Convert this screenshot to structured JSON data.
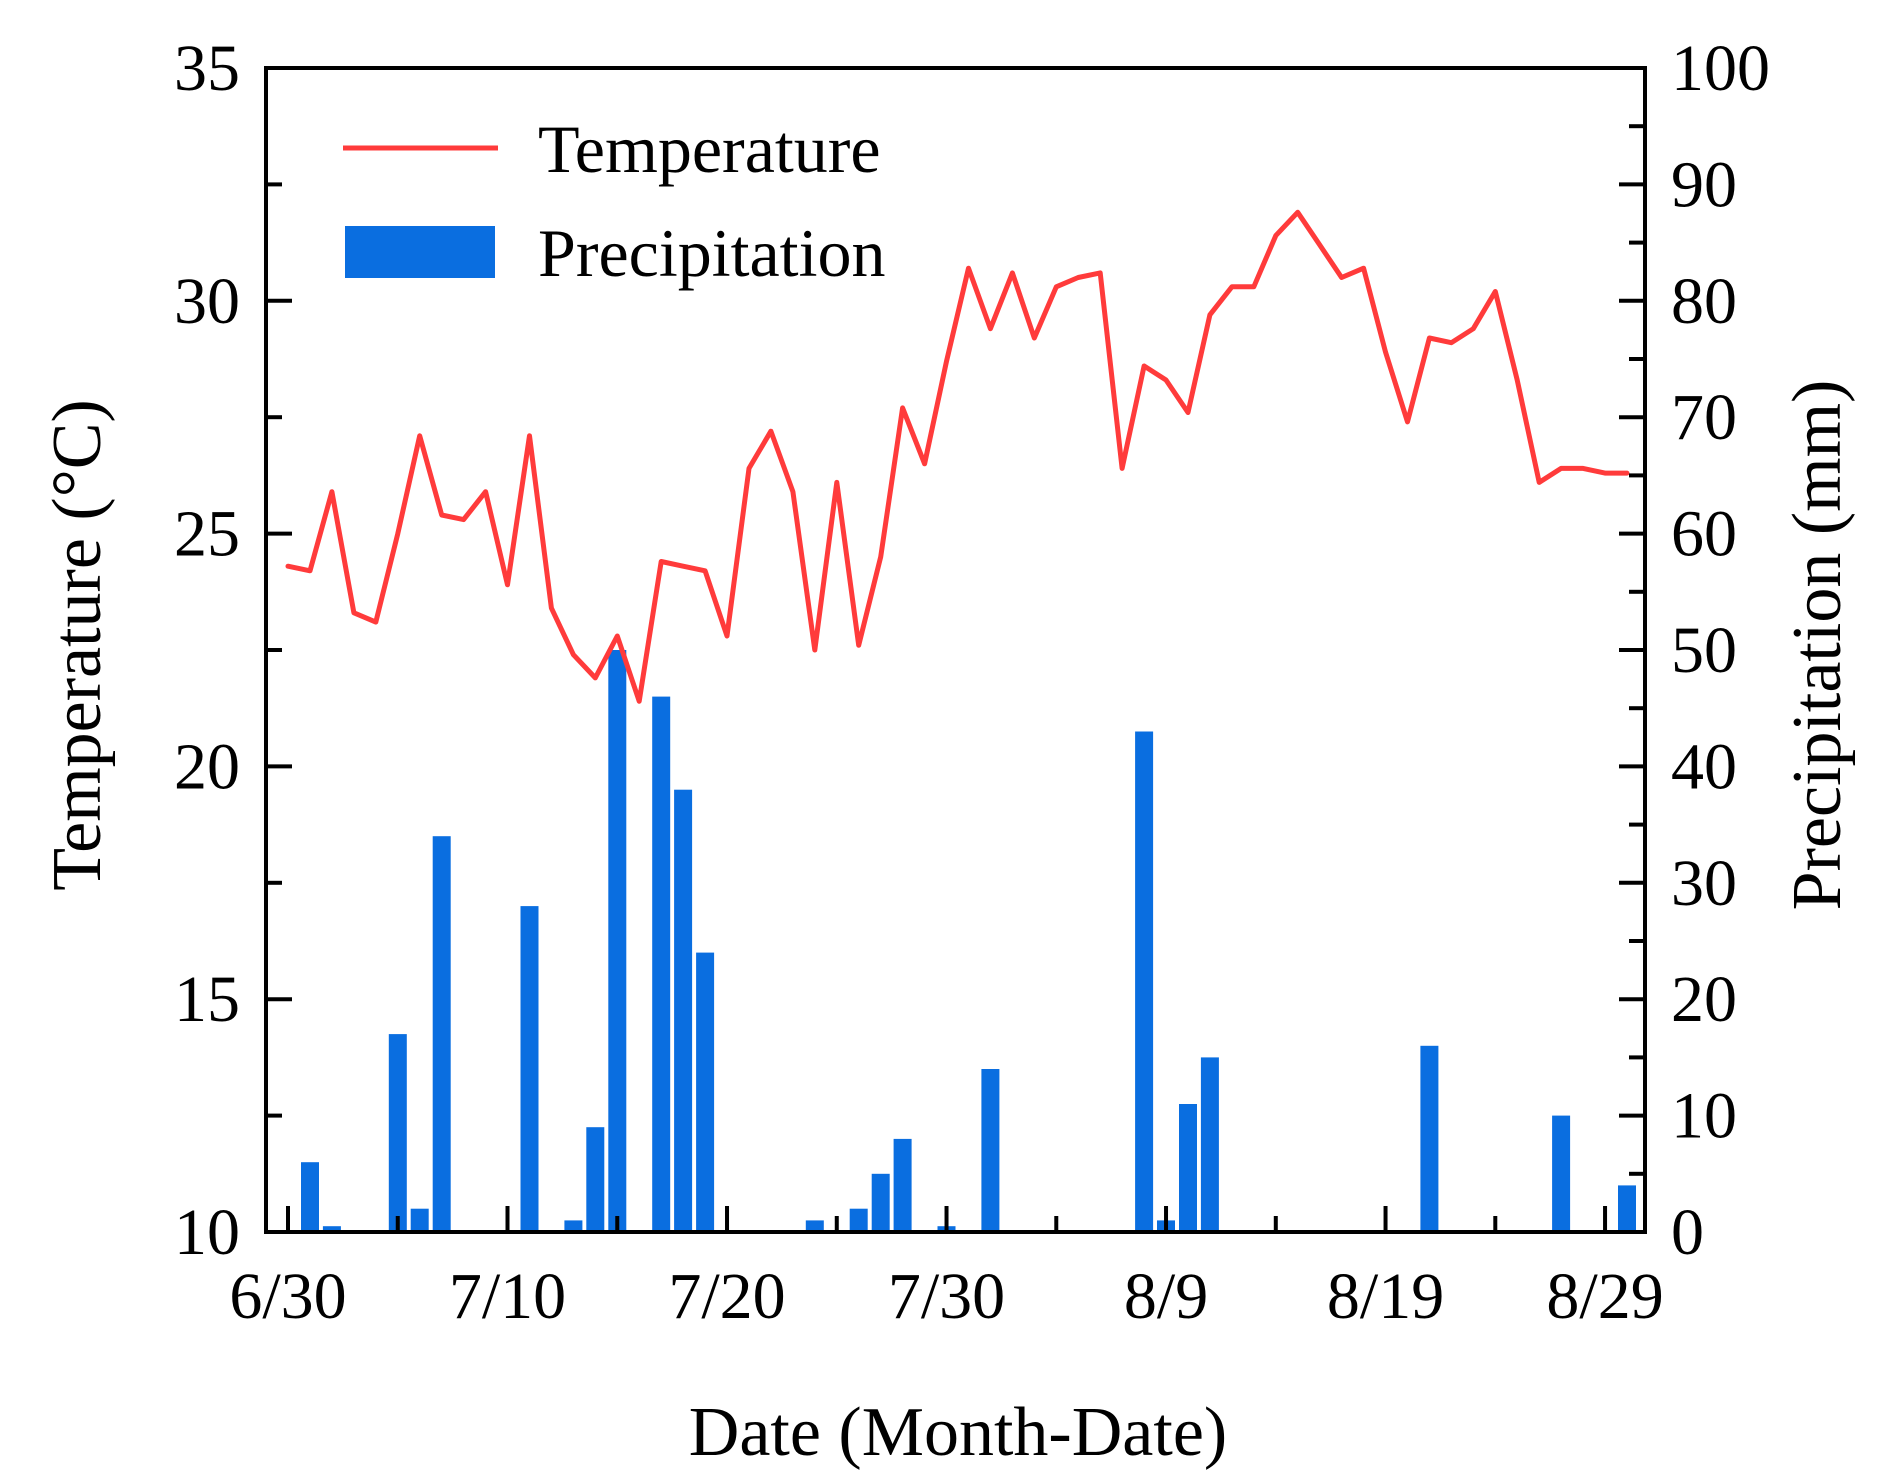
{
  "chart_data": {
    "type": "bar+line",
    "xlabel": "Date (Month-Date)",
    "ylabel_left": "Temperature (°C)",
    "ylabel_right": "Precipitation (mm)",
    "x_tick_labels": [
      "6/30",
      "7/10",
      "7/20",
      "7/30",
      "8/9",
      "8/19",
      "8/29"
    ],
    "x_tick_days": [
      0,
      10,
      20,
      30,
      40,
      50,
      60
    ],
    "xlim": [
      0,
      61
    ],
    "ylim_left": [
      10,
      35
    ],
    "ylim_right": [
      0,
      100
    ],
    "yticks_left": [
      10,
      15,
      20,
      25,
      30,
      35
    ],
    "yticks_right": [
      0,
      10,
      20,
      30,
      40,
      50,
      60,
      70,
      80,
      90,
      100
    ],
    "legend": [
      {
        "label": "Temperature",
        "kind": "line",
        "color": "#ff3b3b"
      },
      {
        "label": "Precipitation",
        "kind": "bar",
        "color": "#0a6ee0"
      }
    ],
    "series": [
      {
        "name": "Temperature",
        "axis": "left",
        "color": "#ff3b3b",
        "x": [
          0,
          1,
          2,
          3,
          4,
          5,
          6,
          7,
          8,
          9,
          10,
          11,
          12,
          13,
          14,
          15,
          16,
          17,
          18,
          19,
          20,
          21,
          22,
          23,
          24,
          25,
          26,
          27,
          28,
          29,
          30,
          31,
          32,
          33,
          34,
          35,
          36,
          37,
          38,
          39,
          40,
          41,
          42,
          43,
          44,
          45,
          46,
          47,
          48,
          49,
          50,
          51,
          52,
          53,
          54,
          55,
          56,
          57,
          58,
          59,
          60,
          61
        ],
        "values": [
          24.3,
          24.2,
          25.9,
          23.3,
          23.1,
          25.0,
          27.1,
          25.4,
          25.3,
          25.9,
          23.9,
          27.1,
          23.4,
          22.4,
          21.9,
          22.8,
          21.4,
          24.4,
          24.3,
          24.2,
          22.8,
          26.4,
          27.2,
          25.9,
          22.5,
          26.1,
          22.6,
          24.5,
          27.7,
          26.5,
          28.7,
          30.7,
          29.4,
          30.6,
          29.2,
          30.3,
          30.5,
          30.6,
          26.4,
          28.6,
          28.3,
          27.6,
          29.7,
          30.3,
          30.3,
          31.4,
          31.9,
          31.2,
          30.5,
          30.7,
          28.9,
          27.4,
          29.2,
          29.1,
          29.4,
          30.2,
          28.3,
          26.1,
          26.4,
          26.4,
          26.3,
          26.3
        ]
      },
      {
        "name": "Precipitation",
        "axis": "right",
        "color": "#0a6ee0",
        "x": [
          1,
          2,
          5,
          6,
          7,
          11,
          13,
          14,
          15,
          17,
          18,
          19,
          24,
          26,
          27,
          28,
          30,
          32,
          39,
          40,
          41,
          42,
          52,
          58,
          61
        ],
        "values": [
          6,
          0.5,
          17,
          2,
          34,
          28,
          1,
          9,
          50,
          46,
          38,
          24,
          1,
          2,
          5,
          8,
          0.5,
          14,
          43,
          1,
          11,
          15,
          16,
          10,
          4
        ]
      }
    ]
  }
}
